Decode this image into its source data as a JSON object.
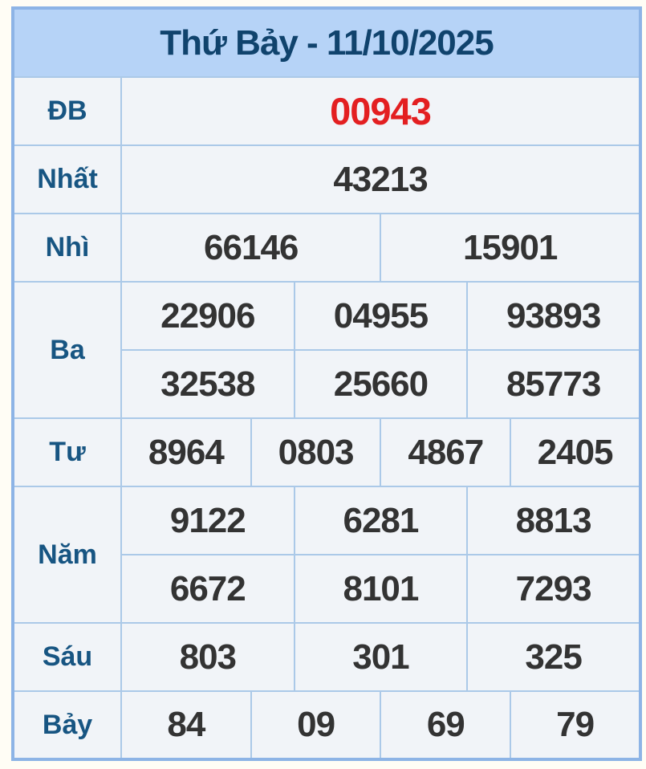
{
  "header": {
    "title": "Thứ Bảy - 11/10/2025"
  },
  "prizes": {
    "db": {
      "label": "ĐB",
      "values": [
        "00943"
      ]
    },
    "nhat": {
      "label": "Nhất",
      "values": [
        "43213"
      ]
    },
    "nhi": {
      "label": "Nhì",
      "values": [
        "66146",
        "15901"
      ]
    },
    "ba": {
      "label": "Ba",
      "rows": [
        [
          "22906",
          "04955",
          "93893"
        ],
        [
          "32538",
          "25660",
          "85773"
        ]
      ]
    },
    "tu": {
      "label": "Tư",
      "values": [
        "8964",
        "0803",
        "4867",
        "2405"
      ]
    },
    "nam": {
      "label": "Năm",
      "rows": [
        [
          "9122",
          "6281",
          "8813"
        ],
        [
          "6672",
          "8101",
          "7293"
        ]
      ]
    },
    "sau": {
      "label": "Sáu",
      "values": [
        "803",
        "301",
        "325"
      ]
    },
    "bay": {
      "label": "Bảy",
      "values": [
        "84",
        "09",
        "69",
        "79"
      ]
    }
  },
  "colors": {
    "header_bg": "#b6d3f7",
    "title_text": "#10436d",
    "label_text": "#175582",
    "value_text": "#333333",
    "special_value_text": "#e31f21",
    "cell_bg": "#f1f4f8",
    "outer_border": "#8db4e6",
    "inner_border": "#abc9e8",
    "page_bg": "#fffdf5"
  }
}
